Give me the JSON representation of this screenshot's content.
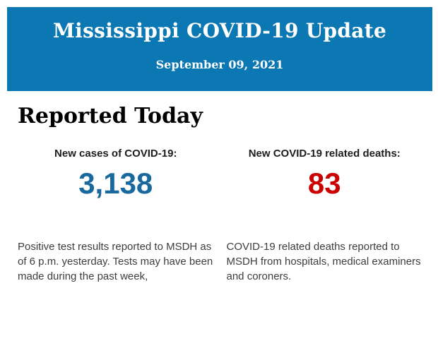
{
  "header": {
    "title": "Mississippi COVID-19 Update",
    "date": "September 09, 2021",
    "background_color": "#0b77b3",
    "text_color": "#ffffff"
  },
  "report": {
    "heading": "Reported Today",
    "stats": [
      {
        "id": "new-cases",
        "label": "New cases of COVID-19:",
        "value": "3,138",
        "value_color": "#19699f",
        "description_lines": [
          "Positive test results reported to MSDH as",
          "of 6 p.m. yesterday. Tests may have been",
          "made during the past week,"
        ]
      },
      {
        "id": "new-deaths",
        "label": "New COVID-19 related deaths:",
        "value": "83",
        "value_color": "#cc0000",
        "description_lines": [
          "COVID-19 related deaths reported to",
          "MSDH from hospitals, medical examiners",
          "and coroners."
        ]
      }
    ]
  }
}
